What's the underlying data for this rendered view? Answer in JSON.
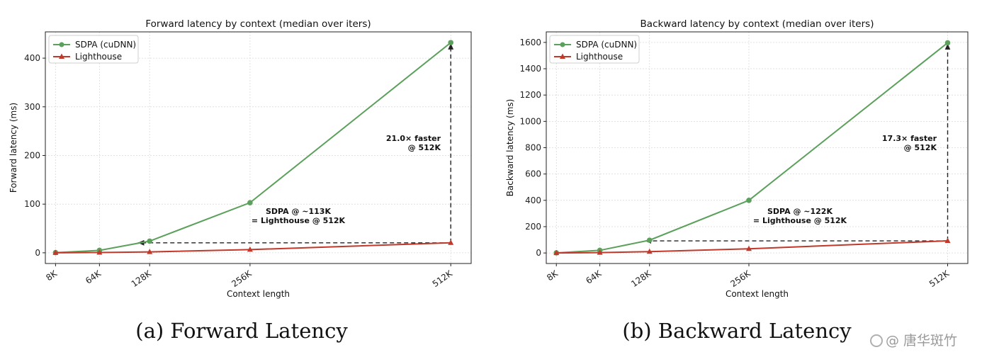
{
  "chart_data": [
    {
      "type": "line",
      "title": "Forward latency by context (median over iters)",
      "xlabel": "Context length",
      "ylabel": "Forward latency (ms)",
      "caption": "(a) Forward Latency",
      "x": [
        8,
        64,
        128,
        256,
        512
      ],
      "x_tick_labels": [
        "8K",
        "64K",
        "128K",
        "256K",
        "512K"
      ],
      "xlim": [
        -5,
        538
      ],
      "ylim": [
        -22,
        454
      ],
      "y_ticks": [
        0,
        100,
        200,
        300,
        400
      ],
      "grid": true,
      "legend_position": "top-left",
      "series": [
        {
          "name": "SDPA (cuDNN)",
          "color": "#5ba05b",
          "marker": "circle",
          "values": [
            0.4,
            5,
            24,
            103,
            432
          ]
        },
        {
          "name": "Lighthouse",
          "color": "#c0392b",
          "marker": "triangle",
          "values": [
            0.1,
            0.6,
            1.8,
            6.5,
            20.5
          ]
        }
      ],
      "annotations": [
        {
          "lines": [
            "21.0× faster",
            "@ 512K"
          ]
        },
        {
          "lines": [
            "SDPA @ ~113K",
            "= Lighthouse @ 512K"
          ]
        }
      ],
      "speedup_arrow": {
        "x": 512,
        "y_from": 20.5,
        "y_to": 432
      },
      "match_arrow": {
        "y": 20.5,
        "x_from": 512,
        "x_to": 113
      }
    },
    {
      "type": "line",
      "title": "Backward latency by context (median over iters)",
      "xlabel": "Context length",
      "ylabel": "Backward latency (ms)",
      "caption": "(b) Backward Latency",
      "x": [
        8,
        64,
        128,
        256,
        512
      ],
      "x_tick_labels": [
        "8K",
        "64K",
        "128K",
        "256K",
        "512K"
      ],
      "xlim": [
        -5,
        538
      ],
      "ylim": [
        -80,
        1680
      ],
      "y_ticks": [
        0,
        200,
        400,
        600,
        800,
        1000,
        1200,
        1400,
        1600
      ],
      "grid": true,
      "legend_position": "top-left",
      "series": [
        {
          "name": "SDPA (cuDNN)",
          "color": "#5ba05b",
          "marker": "circle",
          "values": [
            1,
            20,
            97,
            400,
            1597
          ]
        },
        {
          "name": "Lighthouse",
          "color": "#c0392b",
          "marker": "triangle",
          "values": [
            0.3,
            3,
            10,
            32,
            92
          ]
        }
      ],
      "annotations": [
        {
          "lines": [
            "17.3× faster",
            "@ 512K"
          ]
        },
        {
          "lines": [
            "SDPA @ ~122K",
            "= Lighthouse @ 512K"
          ]
        }
      ],
      "speedup_arrow": {
        "x": 512,
        "y_from": 92,
        "y_to": 1597
      },
      "match_arrow": {
        "y": 92,
        "x_from": 512,
        "x_to": 122
      }
    }
  ],
  "watermark": {
    "text": "@ 唐华斑竹",
    "icon": "wechat-logo-icon"
  }
}
